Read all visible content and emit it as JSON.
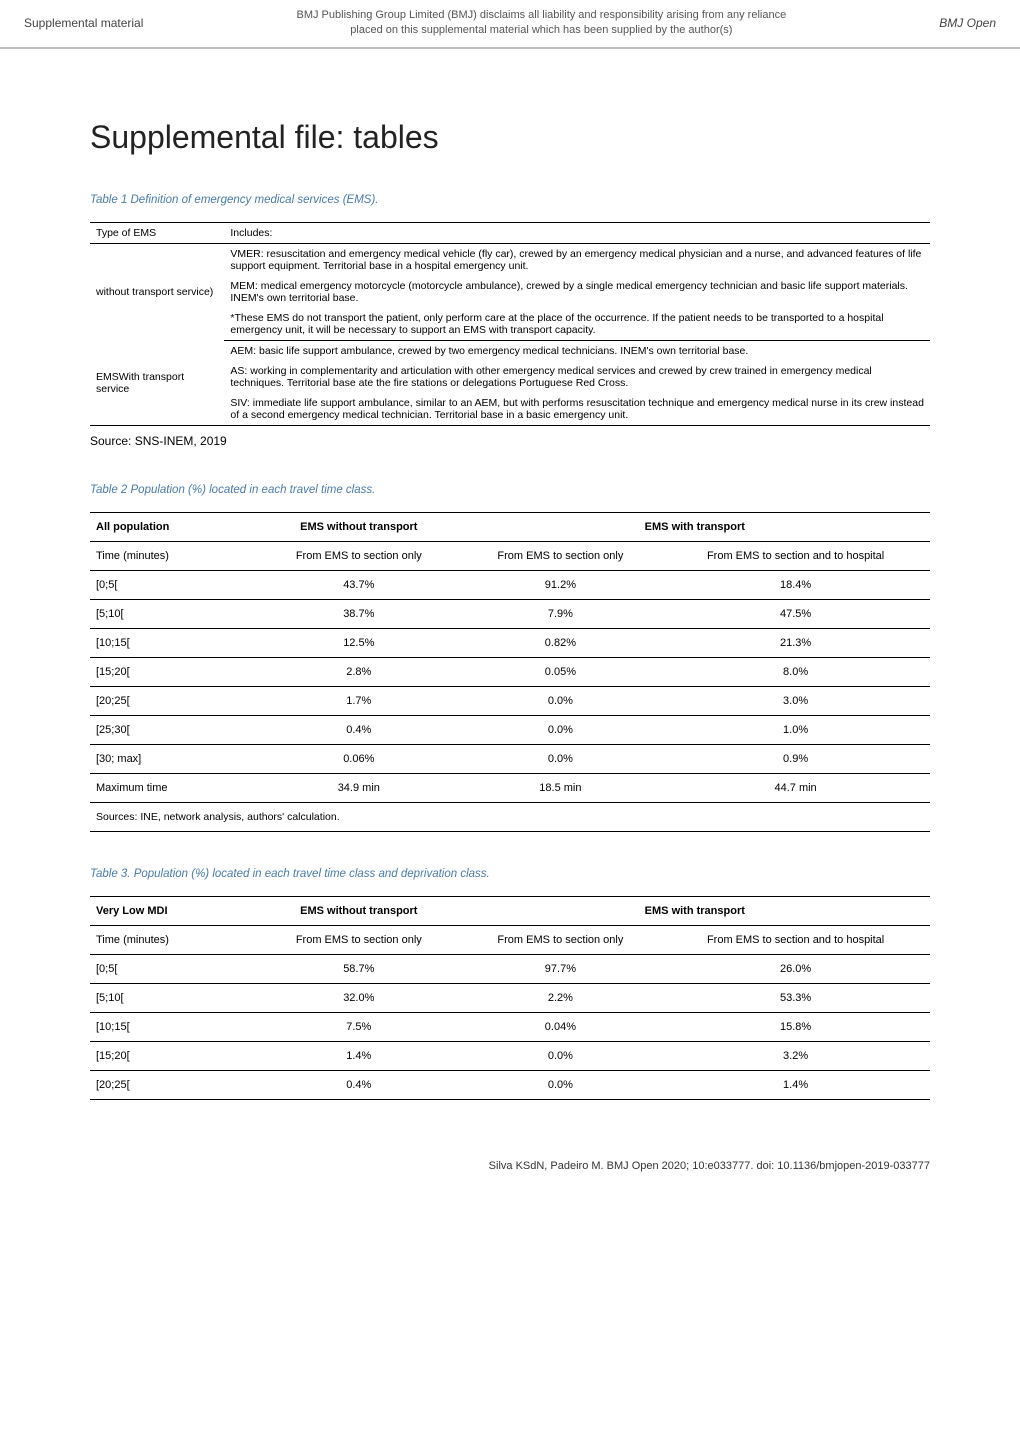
{
  "topbar": {
    "left": "Supplemental material",
    "center_l1": "BMJ Publishing Group Limited (BMJ) disclaims all liability and responsibility arising from any reliance",
    "center_l2": "placed on this supplemental material which has been supplied by the author(s)",
    "right": "BMJ Open"
  },
  "doc_title": "Supplemental file: tables",
  "table1": {
    "caption": "Table 1 Definition of emergency medical services (EMS).",
    "header": {
      "c1": "Type of EMS",
      "c2": "Includes:"
    },
    "rows": [
      {
        "type": "without transport service)",
        "lines": [
          "VMER: resuscitation and emergency medical vehicle (fly car), crewed by an emergency medical physician and a nurse, and advanced features of life support equipment. Territorial base in a hospital emergency unit.",
          "MEM: medical emergency motorcycle (motorcycle ambulance), crewed by a single medical emergency technician and basic life support materials. INEM's own territorial base.",
          "*These EMS do not transport the patient, only perform care at the place of the occurrence. If the patient needs to be transported to a hospital emergency unit, it will be necessary to support an EMS with transport capacity."
        ]
      },
      {
        "type": "EMSWith transport service",
        "lines": [
          "AEM: basic life support ambulance, crewed by two emergency medical technicians. INEM's own territorial base.",
          "AS: working in complementarity and articulation with other emergency medical services and crewed by crew trained in emergency medical techniques. Territorial base ate the fire stations or delegations Portuguese Red Cross.",
          "SIV: immediate life support ambulance, similar to an AEM, but with performs resuscitation technique and emergency medical nurse in its crew instead of a second emergency medical technician. Territorial base in a basic emergency unit."
        ]
      }
    ],
    "source": "Source: SNS-INEM, 2019"
  },
  "table2": {
    "caption": "Table 2 Population (%) located in each travel time class.",
    "group_headers": {
      "c1": "All population",
      "c2": "EMS without transport",
      "c34": "EMS with transport"
    },
    "sub_headers": {
      "c1": "Time (minutes)",
      "c2": "From EMS to section only",
      "c3": "From EMS to section only",
      "c4": "From EMS to section and to hospital"
    },
    "rows": [
      {
        "c1": "[0;5[",
        "c2": "43.7%",
        "c3": "91.2%",
        "c4": "18.4%"
      },
      {
        "c1": "[5;10[",
        "c2": "38.7%",
        "c3": "7.9%",
        "c4": "47.5%"
      },
      {
        "c1": "[10;15[",
        "c2": "12.5%",
        "c3": "0.82%",
        "c4": "21.3%"
      },
      {
        "c1": "[15;20[",
        "c2": "2.8%",
        "c3": "0.05%",
        "c4": "8.0%"
      },
      {
        "c1": "[20;25[",
        "c2": "1.7%",
        "c3": "0.0%",
        "c4": "3.0%"
      },
      {
        "c1": "[25;30[",
        "c2": "0.4%",
        "c3": "0.0%",
        "c4": "1.0%"
      },
      {
        "c1": "[30; max]",
        "c2": "0.06%",
        "c3": "0.0%",
        "c4": "0.9%"
      },
      {
        "c1": "Maximum time",
        "c2": "34.9 min",
        "c3": "18.5 min",
        "c4": "44.7 min"
      }
    ],
    "source": "Sources: INE, network analysis, authors' calculation."
  },
  "table3": {
    "caption": "Table 3. Population (%) located in each travel time class and deprivation class.",
    "group_headers": {
      "c1": "Very Low MDI",
      "c2": "EMS without transport",
      "c34": "EMS with transport"
    },
    "sub_headers": {
      "c1": "Time (minutes)",
      "c2": "From EMS to section only",
      "c3": "From EMS to section only",
      "c4": "From EMS to section and to hospital"
    },
    "rows": [
      {
        "c1": "[0;5[",
        "c2": "58.7%",
        "c3": "97.7%",
        "c4": "26.0%"
      },
      {
        "c1": "[5;10[",
        "c2": "32.0%",
        "c3": "2.2%",
        "c4": "53.3%"
      },
      {
        "c1": "[10;15[",
        "c2": "7.5%",
        "c3": "0.04%",
        "c4": "15.8%"
      },
      {
        "c1": "[15;20[",
        "c2": "1.4%",
        "c3": "0.0%",
        "c4": "3.2%"
      },
      {
        "c1": "[20;25[",
        "c2": "0.4%",
        "c3": "0.0%",
        "c4": "1.4%"
      }
    ]
  },
  "footer": "Silva KSdN, Padeiro M. BMJ Open 2020; 10:e033777. doi: 10.1136/bmjopen-2019-033777"
}
